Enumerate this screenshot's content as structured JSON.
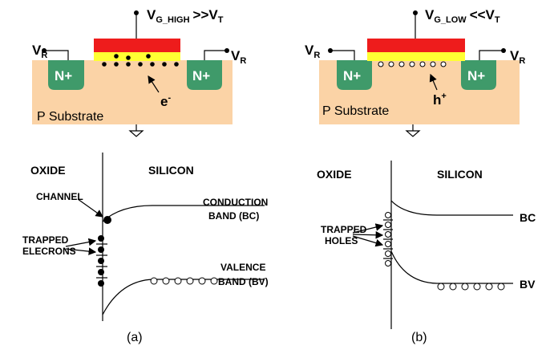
{
  "panels": [
    {
      "gate_label": {
        "v": "V",
        "sub": "G_HIGH",
        "rel": ">>V",
        "sub2": "T"
      },
      "source_label": {
        "v": "V",
        "sub": "R"
      },
      "drain_label": {
        "v": "V",
        "sub": "R"
      },
      "wells": [
        "N+",
        "N+"
      ],
      "carrier": {
        "base": "e",
        "sup": "-"
      },
      "substrate": "P Substrate",
      "band": {
        "oxide": "OXIDE",
        "silicon": "SILICON",
        "channel": "CHANNEL",
        "conduction": [
          "CONDUCTION",
          "BAND (BC)"
        ],
        "trapped": [
          "TRAPPED",
          "ELECRONS"
        ],
        "valence": [
          "VALENCE",
          "BAND (BV)"
        ]
      },
      "caption": "(a)"
    },
    {
      "gate_label": {
        "v": "V",
        "sub": "G_LOW",
        "rel": "<<V",
        "sub2": "T"
      },
      "source_label": {
        "v": "V",
        "sub": "R"
      },
      "drain_label": {
        "v": "V",
        "sub": "R"
      },
      "wells": [
        "N+",
        "N+"
      ],
      "carrier": {
        "base": "h",
        "sup": "+"
      },
      "substrate": "P Substrate",
      "band": {
        "oxide": "OXIDE",
        "silicon": "SILICON",
        "conduction": [
          "BC"
        ],
        "trapped": [
          "TRAPPED",
          "HOLES"
        ],
        "valence": [
          "BV"
        ]
      },
      "caption": "(b)"
    }
  ]
}
